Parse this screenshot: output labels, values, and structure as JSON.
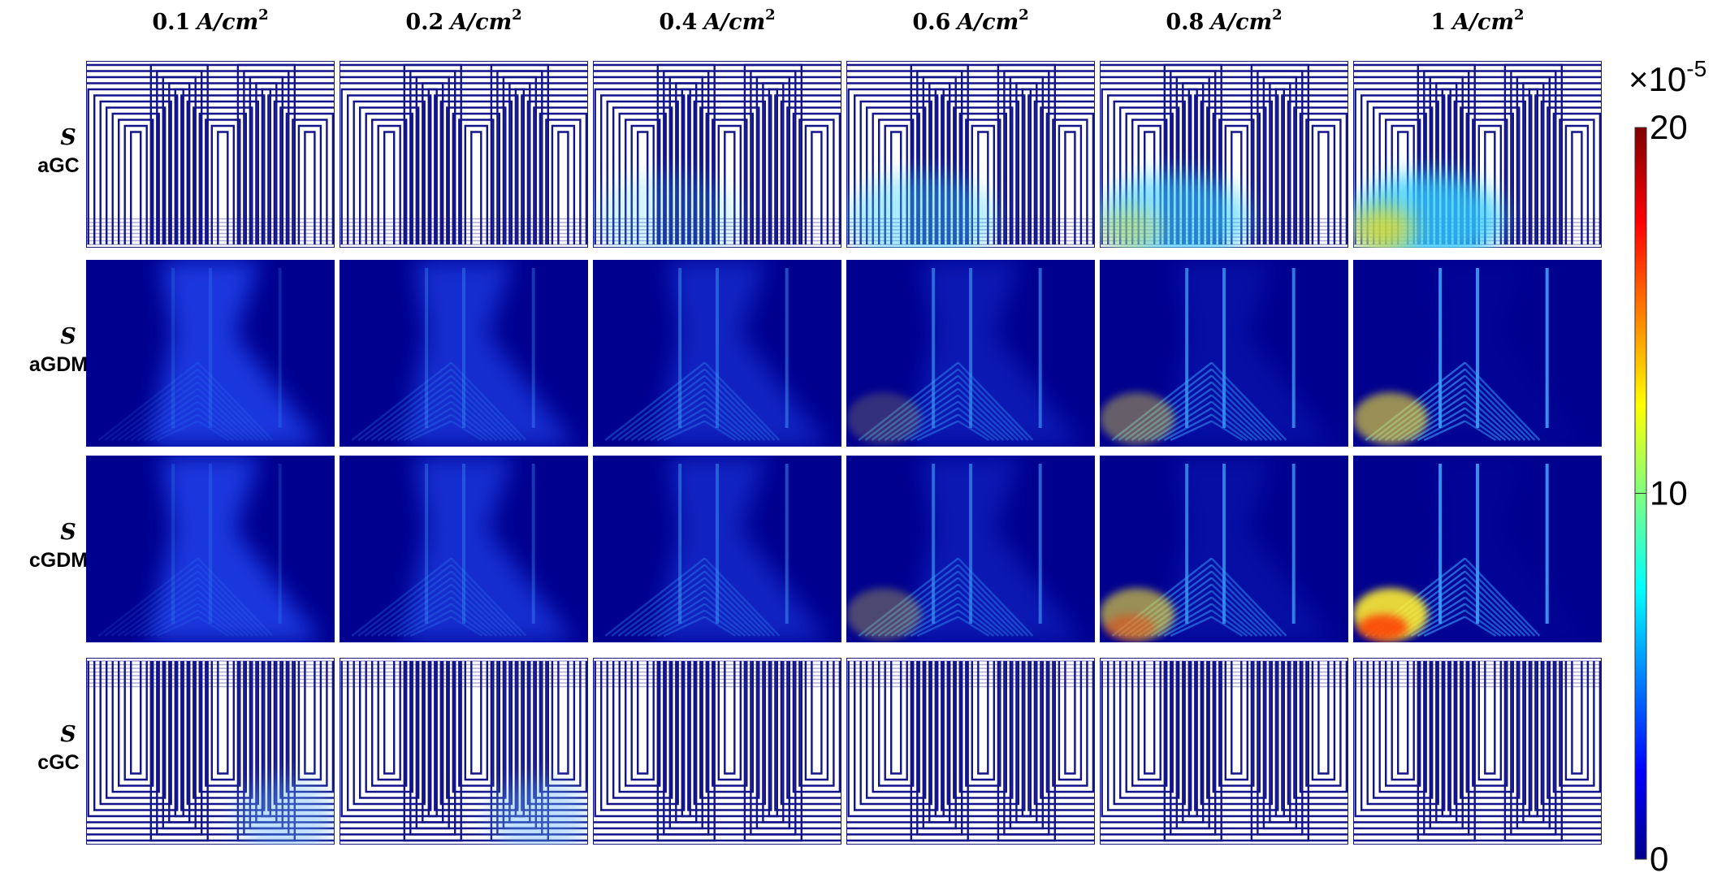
{
  "columns": [
    {
      "number": "0.1",
      "unit": "A/cm",
      "exponent": "2"
    },
    {
      "number": "0.2",
      "unit": "A/cm",
      "exponent": "2"
    },
    {
      "number": "0.4",
      "unit": "A/cm",
      "exponent": "2"
    },
    {
      "number": "0.6",
      "unit": "A/cm",
      "exponent": "2"
    },
    {
      "number": "0.8",
      "unit": "A/cm",
      "exponent": "2"
    },
    {
      "number": "1",
      "unit": "A/cm",
      "exponent": "2"
    }
  ],
  "rows": [
    {
      "symbol": "S",
      "label": "aGC"
    },
    {
      "symbol": "S",
      "label": "aGDM"
    },
    {
      "symbol": "S",
      "label": "cGDM"
    },
    {
      "symbol": "S",
      "label": "cGC"
    }
  ],
  "colorbar": {
    "multiplier": "×10",
    "exponent": "-5",
    "lim": [
      0,
      20
    ],
    "ticks": [
      0,
      10,
      20
    ]
  }
}
